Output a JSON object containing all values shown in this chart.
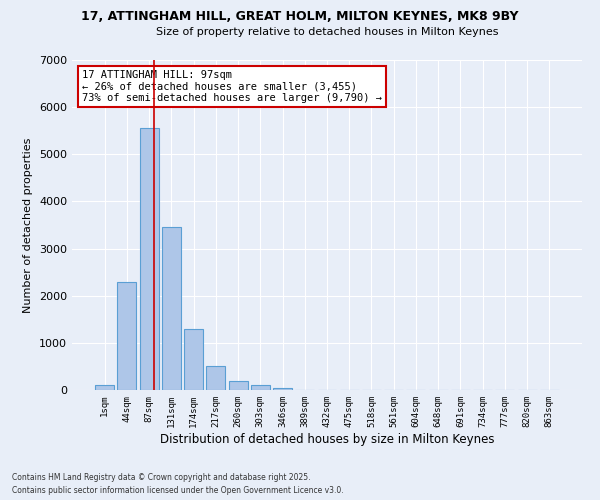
{
  "title_line1": "17, ATTINGHAM HILL, GREAT HOLM, MILTON KEYNES, MK8 9BY",
  "title_line2": "Size of property relative to detached houses in Milton Keynes",
  "xlabel": "Distribution of detached houses by size in Milton Keynes",
  "ylabel": "Number of detached properties",
  "categories": [
    "1sqm",
    "44sqm",
    "87sqm",
    "131sqm",
    "174sqm",
    "217sqm",
    "260sqm",
    "303sqm",
    "346sqm",
    "389sqm",
    "432sqm",
    "475sqm",
    "518sqm",
    "561sqm",
    "604sqm",
    "648sqm",
    "691sqm",
    "734sqm",
    "777sqm",
    "820sqm",
    "863sqm"
  ],
  "values": [
    100,
    2300,
    5550,
    3450,
    1300,
    500,
    200,
    100,
    50,
    0,
    0,
    0,
    0,
    0,
    0,
    0,
    0,
    0,
    0,
    0,
    0
  ],
  "bar_color": "#aec6e8",
  "bar_edge_color": "#5a9fd4",
  "vline_color": "#cc0000",
  "annotation_text": "17 ATTINGHAM HILL: 97sqm\n← 26% of detached houses are smaller (3,455)\n73% of semi-detached houses are larger (9,790) →",
  "annotation_box_color": "#cc0000",
  "background_color": "#e8eef8",
  "grid_color": "#ffffff",
  "ylim": [
    0,
    7000
  ],
  "yticks": [
    0,
    1000,
    2000,
    3000,
    4000,
    5000,
    6000,
    7000
  ],
  "footer_line1": "Contains HM Land Registry data © Crown copyright and database right 2025.",
  "footer_line2": "Contains public sector information licensed under the Open Government Licence v3.0."
}
